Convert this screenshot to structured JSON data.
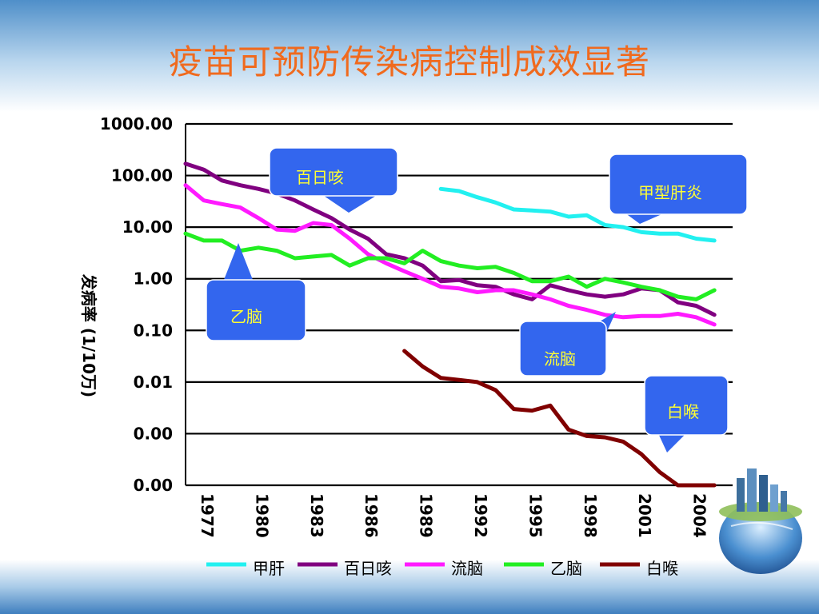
{
  "slide": {
    "title": "疫苗可预防传染病控制成效显著"
  },
  "colors": {
    "title": "#f06a1e",
    "callout_fill": "#3366ee",
    "callout_text": "#ffff33",
    "甲肝": "#22f0f0",
    "百日咳": "#800080",
    "流脑": "#ff1aff",
    "乙脑": "#22ee22",
    "白喉": "#800000"
  },
  "chart_data": {
    "type": "line",
    "title": "",
    "xlabel": "",
    "ylabel": "发病率 (1/10万)",
    "yscale": "log",
    "ylim": [
      0.0001,
      1000
    ],
    "y_tick_values": [
      0.0001,
      0.001,
      0.01,
      0.1,
      1,
      10,
      100,
      1000
    ],
    "y_tick_labels": [
      "0.00",
      "0.00",
      "0.01",
      "0.10",
      "1.00",
      "10.00",
      "100.00",
      "1000.00"
    ],
    "x_tick_labels": [
      "1977",
      "1980",
      "1983",
      "1986",
      "1989",
      "1992",
      "1995",
      "1998",
      "2001",
      "2004"
    ],
    "xlim": [
      1977,
      2007
    ],
    "grid": "horizontal",
    "legend_position": "bottom",
    "series": [
      {
        "name": "甲肝",
        "x": [
          1991,
          1992,
          1993,
          1994,
          1995,
          1996,
          1997,
          1998,
          1999,
          2000,
          2001,
          2002,
          2003,
          2004,
          2005,
          2006
        ],
        "y": [
          55,
          50,
          38,
          30,
          22,
          21,
          20,
          16,
          17,
          11,
          10,
          8,
          7.5,
          7.5,
          6,
          5.5
        ]
      },
      {
        "name": "百日咳",
        "x": [
          1977,
          1978,
          1979,
          1980,
          1981,
          1982,
          1983,
          1984,
          1985,
          1986,
          1987,
          1988,
          1989,
          1990,
          1991,
          1992,
          1993,
          1994,
          1995,
          1996,
          1997,
          1998,
          1999,
          2000,
          2001,
          2002,
          2003,
          2004,
          2005,
          2006
        ],
        "y": [
          170,
          130,
          80,
          65,
          55,
          45,
          33,
          22,
          15,
          9,
          6,
          3,
          2.5,
          1.8,
          0.9,
          0.95,
          0.75,
          0.7,
          0.5,
          0.4,
          0.75,
          0.6,
          0.5,
          0.45,
          0.5,
          0.65,
          0.6,
          0.35,
          0.3,
          0.2
        ]
      },
      {
        "name": "流脑",
        "x": [
          1977,
          1978,
          1979,
          1980,
          1981,
          1982,
          1983,
          1984,
          1985,
          1986,
          1987,
          1988,
          1989,
          1990,
          1991,
          1992,
          1993,
          1994,
          1995,
          1996,
          1997,
          1998,
          1999,
          2000,
          2001,
          2002,
          2003,
          2004,
          2005,
          2006
        ],
        "y": [
          65,
          33,
          28,
          24,
          15,
          9,
          8.5,
          12,
          11,
          6,
          3,
          2,
          1.4,
          1,
          0.7,
          0.65,
          0.55,
          0.6,
          0.6,
          0.5,
          0.4,
          0.3,
          0.25,
          0.2,
          0.18,
          0.19,
          0.19,
          0.21,
          0.18,
          0.13
        ]
      },
      {
        "name": "乙脑",
        "x": [
          1977,
          1978,
          1979,
          1980,
          1981,
          1982,
          1983,
          1984,
          1985,
          1986,
          1987,
          1988,
          1989,
          1990,
          1991,
          1992,
          1993,
          1994,
          1995,
          1996,
          1997,
          1998,
          1999,
          2000,
          2001,
          2002,
          2003,
          2004,
          2005,
          2006
        ],
        "y": [
          7.5,
          5.5,
          5.5,
          3.5,
          4,
          3.5,
          2.5,
          2.7,
          2.9,
          1.8,
          2.5,
          2.5,
          2,
          3.5,
          2.2,
          1.8,
          1.6,
          1.7,
          1.3,
          0.9,
          0.9,
          1.1,
          0.7,
          1,
          0.85,
          0.7,
          0.6,
          0.45,
          0.4,
          0.6
        ]
      },
      {
        "name": "白喉",
        "x": [
          1989,
          1990,
          1991,
          1992,
          1993,
          1994,
          1995,
          1996,
          1997,
          1998,
          1999,
          2000,
          2001,
          2002,
          2003,
          2004,
          2005,
          2006
        ],
        "y": [
          0.04,
          0.02,
          0.012,
          0.011,
          0.01,
          0.007,
          0.003,
          0.0028,
          0.0035,
          0.0012,
          0.0009,
          0.00085,
          0.0007,
          0.0004,
          0.00018,
          0.0001,
          0.0001,
          0.0001
        ]
      }
    ],
    "callouts": [
      {
        "text": "百日咳",
        "series": "百日咳"
      },
      {
        "text": "甲型肝炎",
        "series": "甲肝"
      },
      {
        "text": "乙脑",
        "series": "乙脑"
      },
      {
        "text": "流脑",
        "series": "流脑"
      },
      {
        "text": "白喉",
        "series": "白喉"
      }
    ]
  }
}
